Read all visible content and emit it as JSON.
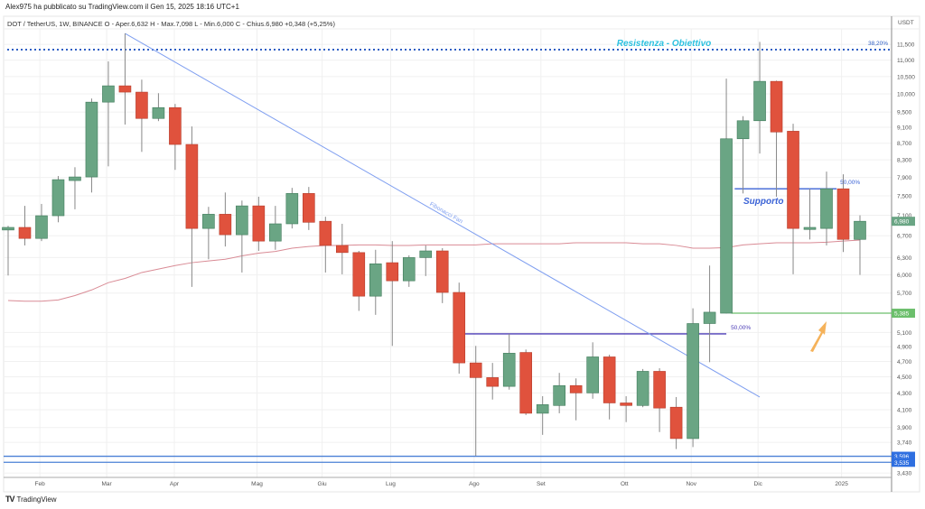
{
  "header": {
    "published": "Alex975 ha pubblicato su TradingView.com il Gen 15, 2025 18:16 UTC+1",
    "legend": "DOT / TetherUS, 1W, BINANCE  O - Aper.6,632  H - Max.7,098  L - Min.6,000  C - Chius.6,980  +0,348 (+5,25%)"
  },
  "footer": {
    "brand": "TradingView",
    "brand_mark": "TV"
  },
  "colors": {
    "up": "#6aa584",
    "down": "#e0523d",
    "ma": "#d98b95",
    "fan": "#7e9ef0",
    "resist": "#2f5fc4",
    "support": "#3b63d6",
    "green_line": "#6cbf6c",
    "purple": "#4a3bb5",
    "blue_lines": "#4a80d6",
    "arrow": "#f5b25a",
    "resist_text": "#2cc1e0"
  },
  "chart_data": {
    "type": "candlestick",
    "currency_label": "USDT",
    "scale": "log",
    "y_ticks": [
      11.5,
      11.0,
      10.5,
      10.0,
      9.5,
      9.1,
      8.7,
      8.3,
      7.9,
      7.5,
      7.1,
      6.7,
      6.3,
      6.0,
      5.7,
      5.1,
      4.9,
      4.7,
      4.5,
      4.3,
      4.1,
      3.9,
      3.74,
      3.43
    ],
    "y_tick_labels": [
      "11,500",
      "11,000",
      "10,500",
      "10,000",
      "9,500",
      "9,100",
      "8,700",
      "8,300",
      "7,900",
      "7,500",
      "7,100",
      "6,700",
      "6,300",
      "6,000",
      "5,700",
      "5,100",
      "4,900",
      "4,700",
      "4,500",
      "4,300",
      "4,100",
      "3,900",
      "3,740",
      "3,430"
    ],
    "months": [
      {
        "label": "Feb",
        "index": 1.9
      },
      {
        "label": "Mar",
        "index": 5.9
      },
      {
        "label": "Apr",
        "index": 9.95
      },
      {
        "label": "Mag",
        "index": 14.9
      },
      {
        "label": "Giu",
        "index": 18.8
      },
      {
        "label": "Lug",
        "index": 22.9
      },
      {
        "label": "Ago",
        "index": 27.9
      },
      {
        "label": "Set",
        "index": 31.9
      },
      {
        "label": "Ott",
        "index": 36.9
      },
      {
        "label": "Nov",
        "index": 40.9
      },
      {
        "label": "Dic",
        "index": 44.9
      },
      {
        "label": "2025",
        "index": 49.9
      }
    ],
    "candles": [
      [
        6.81,
        6.89,
        5.99,
        6.86
      ],
      [
        6.86,
        7.29,
        6.52,
        6.65
      ],
      [
        6.65,
        7.33,
        6.6,
        7.09
      ],
      [
        7.09,
        7.93,
        6.96,
        7.85
      ],
      [
        7.83,
        8.13,
        7.22,
        7.91
      ],
      [
        7.91,
        9.87,
        7.57,
        9.77
      ],
      [
        9.77,
        10.96,
        8.15,
        10.23
      ],
      [
        10.23,
        11.86,
        9.17,
        10.05
      ],
      [
        10.05,
        10.41,
        8.49,
        9.33
      ],
      [
        9.33,
        10.02,
        9.26,
        9.62
      ],
      [
        9.62,
        9.72,
        8.07,
        8.67
      ],
      [
        8.67,
        9.12,
        5.8,
        6.84
      ],
      [
        6.84,
        7.27,
        6.27,
        7.12
      ],
      [
        7.12,
        7.57,
        6.5,
        6.72
      ],
      [
        6.72,
        7.4,
        6.04,
        7.29
      ],
      [
        7.29,
        7.48,
        6.42,
        6.6
      ],
      [
        6.6,
        7.29,
        6.44,
        6.93
      ],
      [
        6.93,
        7.67,
        6.84,
        7.55
      ],
      [
        7.55,
        7.69,
        6.81,
        6.96
      ],
      [
        6.98,
        7.07,
        6.04,
        6.52
      ],
      [
        6.52,
        6.93,
        6.01,
        6.39
      ],
      [
        6.39,
        6.42,
        5.42,
        5.65
      ],
      [
        5.65,
        6.44,
        5.36,
        6.19
      ],
      [
        6.21,
        6.6,
        4.91,
        5.9
      ],
      [
        5.9,
        6.34,
        5.8,
        6.3
      ],
      [
        6.3,
        6.52,
        5.98,
        6.42
      ],
      [
        6.42,
        6.47,
        5.54,
        5.71
      ],
      [
        5.71,
        5.87,
        4.54,
        4.68
      ],
      [
        4.68,
        4.91,
        3.6,
        4.49
      ],
      [
        4.49,
        4.68,
        4.22,
        4.38
      ],
      [
        4.38,
        5.08,
        4.34,
        4.81
      ],
      [
        4.82,
        4.86,
        4.04,
        4.06
      ],
      [
        4.06,
        4.26,
        3.82,
        4.16
      ],
      [
        4.15,
        4.55,
        4.06,
        4.39
      ],
      [
        4.39,
        4.48,
        3.98,
        4.3
      ],
      [
        4.3,
        4.96,
        4.23,
        4.76
      ],
      [
        4.76,
        4.79,
        3.99,
        4.18
      ],
      [
        4.18,
        4.26,
        3.96,
        4.15
      ],
      [
        4.15,
        4.6,
        4.13,
        4.57
      ],
      [
        4.57,
        4.61,
        3.85,
        4.12
      ],
      [
        4.13,
        4.25,
        3.67,
        3.78
      ],
      [
        3.78,
        5.46,
        3.69,
        5.23
      ],
      [
        5.23,
        6.16,
        4.69,
        5.4
      ],
      [
        5.385,
        10.44,
        5.38,
        8.81
      ],
      [
        8.81,
        9.39,
        7.55,
        9.27
      ],
      [
        9.27,
        11.58,
        8.45,
        10.36
      ],
      [
        10.36,
        10.38,
        7.48,
        8.98
      ],
      [
        9.0,
        9.19,
        6.01,
        6.84
      ],
      [
        6.82,
        7.65,
        6.63,
        6.86
      ],
      [
        6.84,
        8.03,
        6.52,
        7.65
      ],
      [
        7.65,
        7.97,
        6.4,
        6.632
      ],
      [
        6.632,
        7.098,
        6.0,
        6.98
      ]
    ],
    "moving_average": [
      5.58,
      5.57,
      5.57,
      5.59,
      5.66,
      5.75,
      5.87,
      5.94,
      6.04,
      6.1,
      6.16,
      6.21,
      6.24,
      6.27,
      6.33,
      6.38,
      6.41,
      6.47,
      6.5,
      6.52,
      6.52,
      6.53,
      6.53,
      6.52,
      6.52,
      6.53,
      6.53,
      6.53,
      6.53,
      6.55,
      6.55,
      6.55,
      6.55,
      6.55,
      6.57,
      6.57,
      6.57,
      6.57,
      6.55,
      6.55,
      6.52,
      6.47,
      6.47,
      6.48,
      6.53,
      6.55,
      6.57,
      6.57,
      6.57,
      6.58,
      6.6,
      6.62
    ],
    "last_price": {
      "value": 6.98,
      "label": "6,980"
    },
    "annotations": {
      "resistance": {
        "price": 11.33,
        "text": "Resistenza - Obiettivo",
        "fib_label": "38,20%"
      },
      "support": {
        "price": 7.65,
        "from": 43.5,
        "to": 49.6,
        "text": "Supporto",
        "fib_label": "50,00%"
      },
      "purple_level": {
        "price": 5.08,
        "from": 27,
        "to": 43,
        "fib_label": "50,00%"
      },
      "green_level": {
        "price": 5.385,
        "from": 43.3,
        "label": "5,385"
      },
      "blue_levels": [
        {
          "price": 3.596,
          "label": "3,596"
        },
        {
          "price": 3.535,
          "label": "3,535"
        }
      ],
      "fib_fan": {
        "text": "Fibonacci Fan",
        "start": {
          "index": 7,
          "price": 11.86
        },
        "end": {
          "index": 45,
          "price": 4.25
        }
      }
    }
  }
}
